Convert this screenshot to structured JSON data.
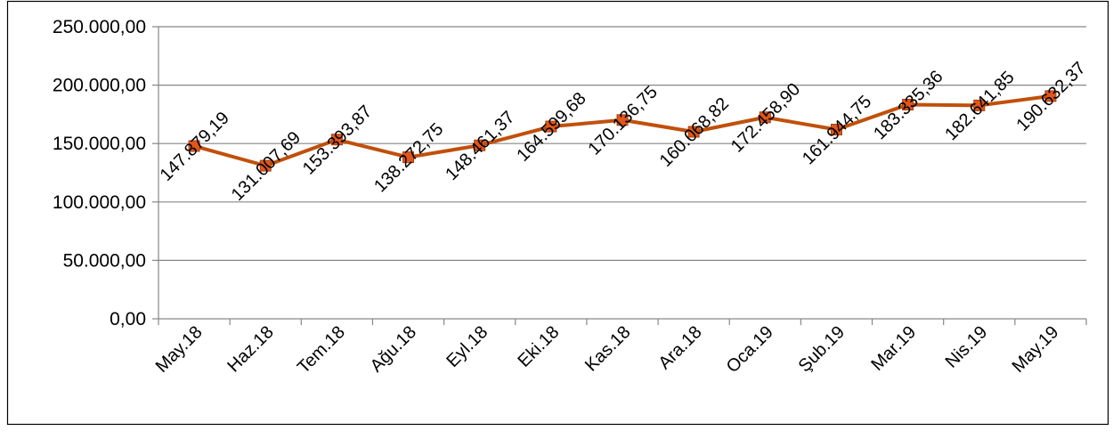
{
  "chart_data": {
    "type": "line",
    "categories": [
      "May.18",
      "Haz.18",
      "Tem.18",
      "Ağu.18",
      "Eyl.18",
      "Eki.18",
      "Kas.18",
      "Ara.18",
      "Oca.19",
      "Şub.19",
      "Mar.19",
      "Nis.19",
      "May.19"
    ],
    "series": [
      {
        "values": [
          147879.19,
          131007.69,
          153393.87,
          138272.75,
          148461.37,
          164599.68,
          170136.75,
          160068.82,
          172458.9,
          161944.75,
          183335.36,
          182641.85,
          190632.37
        ],
        "labels": [
          "147.879,19",
          "131.007,69",
          "153.393,87",
          "138.272,75",
          "148.461,37",
          "164.599,68",
          "170.136,75",
          "160.068,82",
          "172.458,90",
          "161.944,75",
          "183.335,36",
          "182.641,85",
          "190.632,37"
        ],
        "color": "#C0500A",
        "marker_color": "#E0561B"
      }
    ],
    "ylim": [
      0,
      250000
    ],
    "yticks": [
      0,
      50000,
      100000,
      150000,
      200000,
      250000
    ],
    "ytick_labels": [
      "0,00",
      "50.000,00",
      "100.000,00",
      "150.000,00",
      "200.000,00",
      "250.000,00"
    ],
    "grid": true,
    "title": "",
    "xlabel": "",
    "ylabel": ""
  }
}
